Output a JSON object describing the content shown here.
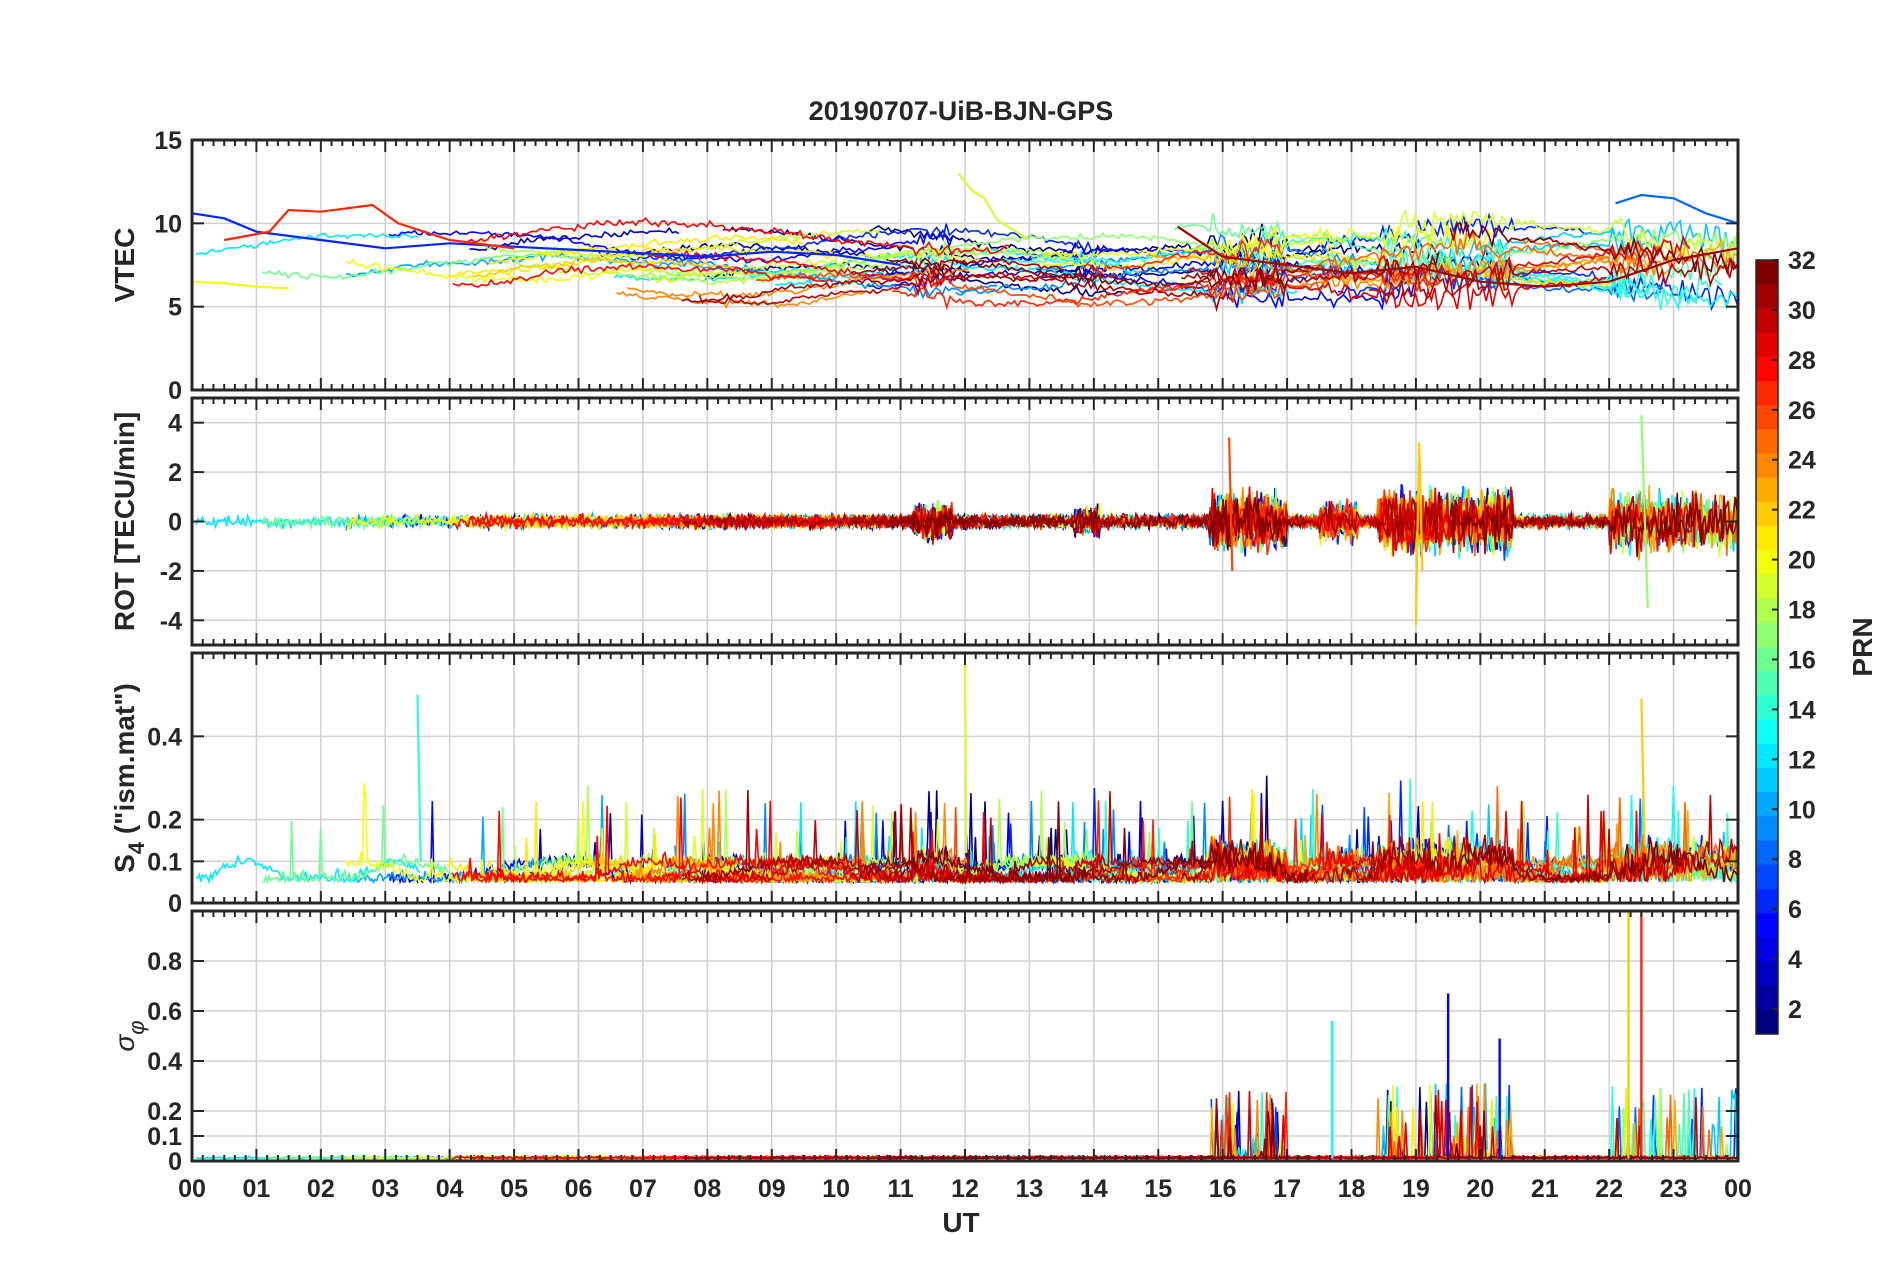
{
  "chart_data": {
    "type": "line",
    "title": "20190707-UiB-BJN-GPS",
    "xlabel": "UT",
    "x_ticks": [
      "00",
      "01",
      "02",
      "03",
      "04",
      "05",
      "06",
      "07",
      "08",
      "09",
      "10",
      "11",
      "12",
      "13",
      "14",
      "15",
      "16",
      "17",
      "18",
      "19",
      "20",
      "21",
      "22",
      "23",
      "00"
    ],
    "x_range_hours": [
      0,
      24
    ],
    "colormap": {
      "name": "jet",
      "label": "PRN",
      "range": [
        1,
        32
      ],
      "ticks": [
        "2",
        "4",
        "6",
        "8",
        "10",
        "12",
        "14",
        "16",
        "18",
        "20",
        "22",
        "24",
        "26",
        "28",
        "30",
        "32"
      ],
      "colors": [
        "#00008f",
        "#0000ff",
        "#00ffff",
        "#ffff00",
        "#ff0000",
        "#800000"
      ]
    },
    "panels": [
      {
        "ylabel": "VTEC",
        "ylim": [
          0,
          15
        ],
        "yticks": [
          "0",
          "5",
          "10",
          "15"
        ],
        "series_summary": "PRN 1-32 vertical TEC traces between 4 and 13 TECU, mostly 6-10 TECU",
        "representative": [
          {
            "prn": 6,
            "points": [
              [
                0,
                10.6
              ],
              [
                0.5,
                10.3
              ],
              [
                1,
                9.5
              ],
              [
                2,
                9
              ],
              [
                3,
                8.5
              ],
              [
                4,
                8.8
              ],
              [
                5,
                8.6
              ],
              [
                6,
                8.4
              ],
              [
                7,
                8.2
              ],
              [
                8,
                8
              ],
              [
                9,
                8.3
              ],
              [
                10,
                8.1
              ],
              [
                11,
                7.5
              ]
            ]
          },
          {
            "prn": 27,
            "points": [
              [
                0.5,
                9
              ],
              [
                1.2,
                9.5
              ],
              [
                1.5,
                10.8
              ],
              [
                2,
                10.7
              ],
              [
                2.8,
                11.1
              ],
              [
                3.2,
                10
              ],
              [
                4,
                9
              ],
              [
                5,
                8.5
              ]
            ]
          },
          {
            "prn": 20,
            "points": [
              [
                0,
                6.5
              ],
              [
                0.5,
                6.4
              ],
              [
                1,
                6.2
              ],
              [
                1.5,
                6.1
              ]
            ]
          },
          {
            "prn": 19,
            "points": [
              [
                11.9,
                13
              ],
              [
                12.1,
                12
              ],
              [
                12.3,
                11.5
              ],
              [
                12.5,
                10.2
              ],
              [
                13,
                9
              ]
            ]
          },
          {
            "prn": 8,
            "points": [
              [
                22.1,
                11.2
              ],
              [
                22.5,
                11.7
              ],
              [
                23,
                11.5
              ],
              [
                23.5,
                10.6
              ],
              [
                24,
                10
              ]
            ]
          },
          {
            "prn": 31,
            "points": [
              [
                15.3,
                9.8
              ],
              [
                16,
                8
              ],
              [
                17,
                7.5
              ],
              [
                18,
                7
              ],
              [
                19,
                7.4
              ],
              [
                20,
                6.5
              ],
              [
                21,
                6.2
              ],
              [
                22,
                6.5
              ],
              [
                23,
                7.8
              ],
              [
                24,
                8.5
              ]
            ]
          }
        ]
      },
      {
        "ylabel": "ROT [TECU/min]",
        "ylim": [
          -5,
          5
        ],
        "yticks": [
          "-4",
          "-2",
          "0",
          "2",
          "4"
        ],
        "series_summary": "Rate of TEC near 0 with bursts up to about +/-4 TECU/min around 16, 19-20 and 22-23 UT",
        "representative": [
          {
            "prn": 22,
            "points": [
              [
                19,
                -4.2
              ],
              [
                19.05,
                3.2
              ],
              [
                19.1,
                -2
              ]
            ]
          },
          {
            "prn": 26,
            "points": [
              [
                16.1,
                3.4
              ],
              [
                16.15,
                -2
              ]
            ]
          },
          {
            "prn": 17,
            "points": [
              [
                22.5,
                4.3
              ],
              [
                22.6,
                -3.5
              ]
            ]
          }
        ]
      },
      {
        "ylabel": "S4 (\"ism.mat\")",
        "ylabel_main": "S",
        "ylabel_sub": "4",
        "ylabel_rest": " (\"ism.mat\")",
        "ylim": [
          0,
          0.6
        ],
        "yticks": [
          "0",
          "0.1",
          "0.2",
          "0.4"
        ],
        "series_summary": "Amplitude scintillation index mostly 0.05-0.2 with peaks near 0.4-0.6",
        "representative": [
          {
            "prn": 19,
            "points": [
              [
                12.0,
                0.6
              ],
              [
                12.02,
                0.12
              ]
            ]
          },
          {
            "prn": 14,
            "points": [
              [
                3.5,
                0.5
              ],
              [
                3.55,
                0.1
              ]
            ]
          },
          {
            "prn": 22,
            "points": [
              [
                22.5,
                0.49
              ],
              [
                22.55,
                0.14
              ]
            ]
          }
        ]
      },
      {
        "ylabel": "σ φ",
        "ylabel_main": "σ",
        "ylabel_sub": "φ",
        "ylim": [
          0,
          1
        ],
        "yticks": [
          "0",
          "0.1",
          "0.2",
          "0.4",
          "0.6",
          "0.8"
        ],
        "series_summary": "Phase scintillation index near 0 with spikes at 17.7 UT (0.56), 19-20.5 UT (up to 0.67) and 22.3-22.6 UT (above 1)",
        "representative": [
          {
            "prn": 13,
            "points": [
              [
                17.7,
                0.56
              ]
            ]
          },
          {
            "prn": 5,
            "points": [
              [
                19.5,
                0.67
              ]
            ]
          },
          {
            "prn": 5,
            "points": [
              [
                20.3,
                0.49
              ]
            ]
          },
          {
            "prn": 22,
            "points": [
              [
                22.3,
                1.0
              ]
            ]
          },
          {
            "prn": 27,
            "points": [
              [
                22.5,
                1.0
              ]
            ]
          }
        ]
      }
    ]
  }
}
